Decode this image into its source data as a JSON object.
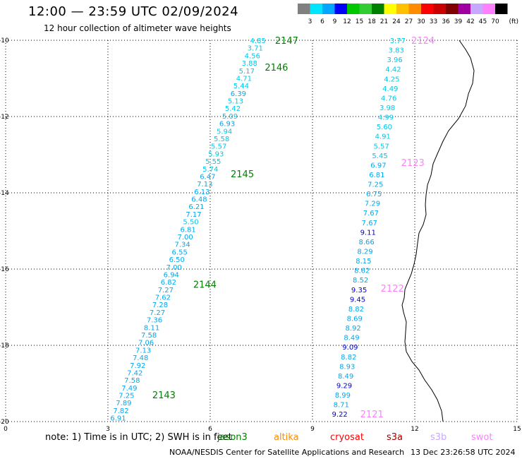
{
  "title": "12:00 — 23:59 UTC 02/09/2024",
  "subtitle": "12 hour collection of altimeter wave heights",
  "colorbar": {
    "labels": [
      "3",
      "6",
      "9",
      "12",
      "15",
      "18",
      "21",
      "24",
      "27",
      "30",
      "33",
      "36",
      "39",
      "42",
      "45",
      "70"
    ],
    "unit": "(ft)",
    "colors": [
      "#808080",
      "#00e5ff",
      "#00a6ff",
      "#0000ff",
      "#00c800",
      "#33cc33",
      "#008000",
      "#ffff00",
      "#ffc000",
      "#ff8c00",
      "#ff0000",
      "#c80000",
      "#800000",
      "#a000a0",
      "#c8a8ff",
      "#ff80ff",
      "#000000"
    ]
  },
  "axes": {
    "x_ticks": [
      "0",
      "3",
      "6",
      "9",
      "12",
      "15"
    ],
    "y_ticks": [
      "-10",
      "-12",
      "-14",
      "-16",
      "-18",
      "-20"
    ],
    "xlim": [
      0,
      15
    ],
    "ylim": [
      -20,
      -10
    ],
    "grid": true
  },
  "labels_color_low": "#00c8e6",
  "labels_color_mid": "#00a8ee",
  "labels_color_high": "#0000cc",
  "passes": [
    {
      "id": "2147",
      "sat": "jason3",
      "x": 7.9,
      "y": -10.0,
      "color": "#008000"
    },
    {
      "id": "2146",
      "sat": "jason3",
      "x": 7.6,
      "y": -10.7,
      "color": "#008000"
    },
    {
      "id": "2145",
      "sat": "jason3",
      "x": 6.6,
      "y": -13.5,
      "color": "#008000"
    },
    {
      "id": "2144",
      "sat": "jason3",
      "x": 5.5,
      "y": -16.4,
      "color": "#008000"
    },
    {
      "id": "2143",
      "sat": "jason3",
      "x": 4.3,
      "y": -19.3,
      "color": "#008000"
    },
    {
      "id": "2124",
      "sat": "swot",
      "x": 11.9,
      "y": -10.0,
      "color": "#ff80ff"
    },
    {
      "id": "2123",
      "sat": "swot",
      "x": 11.6,
      "y": -13.2,
      "color": "#ff80ff"
    },
    {
      "id": "2122",
      "sat": "swot",
      "x": 11.0,
      "y": -16.5,
      "color": "#ff80ff"
    },
    {
      "id": "2121",
      "sat": "swot",
      "x": 10.4,
      "y": -19.8,
      "color": "#ff80ff"
    }
  ],
  "tracks": [
    {
      "name": "jason3-track",
      "x_start": 7.4,
      "y_start": -10.0,
      "x_end": 3.3,
      "y_end": -19.9,
      "values": [
        "4.85",
        "3.71",
        "4.56",
        "3.88",
        "5.17",
        "4.71",
        "5.44",
        "6.39",
        "5.13",
        "5.42",
        "5.09",
        "6.93",
        "5.94",
        "5.58",
        "5.57",
        "5.93",
        "5.55",
        "5.74",
        "6.47",
        "7.13",
        "6.13",
        "6.48",
        "6.21",
        "7.17",
        "5.50",
        "6.81",
        "7.00",
        "7.34",
        "6.55",
        "6.50",
        "7.00",
        "6.94",
        "6.82",
        "7.27",
        "7.62",
        "7.28",
        "7.27",
        "7.36",
        "8.11",
        "7.58",
        "7.06",
        "7.13",
        "7.48",
        "7.92",
        "7.42",
        "7.58",
        "7.49",
        "7.25",
        "7.89",
        "7.82",
        "6.91"
      ]
    },
    {
      "name": "swot-track",
      "x_start": 11.5,
      "y_start": -10.0,
      "x_end": 9.8,
      "y_end": -19.8,
      "values": [
        "3.77",
        "3.83",
        "3.96",
        "4.42",
        "4.25",
        "4.49",
        "4.76",
        "3.98",
        "4.99",
        "5.60",
        "4.91",
        "5.57",
        "5.45",
        "6.97",
        "6.81",
        "7.25",
        "6.75",
        "7.29",
        "7.67",
        "7.67",
        "9.11",
        "8.66",
        "8.29",
        "8.15",
        "8.62",
        "8.52",
        "9.35",
        "9.45",
        "8.82",
        "8.69",
        "8.92",
        "8.49",
        "9.09",
        "8.82",
        "8.93",
        "8.49",
        "9.29",
        "8.99",
        "8.71",
        "9.22"
      ]
    }
  ],
  "note": "note:  1) Time is in UTC;  2) SWH is in feet",
  "satellites": [
    {
      "name": "jason3",
      "color": "#008000"
    },
    {
      "name": "altika",
      "color": "#ff8c00"
    },
    {
      "name": "cryosat",
      "color": "#ff0000"
    },
    {
      "name": "s3a",
      "color": "#a00000"
    },
    {
      "name": "s3b",
      "color": "#c8a8ff"
    },
    {
      "name": "swot",
      "color": "#ff80ff"
    }
  ],
  "credit": "NOAA/NESDIS Center for Satellite Applications and Research",
  "timestamp": "13 Dec 23:26:58 UTC 2024"
}
